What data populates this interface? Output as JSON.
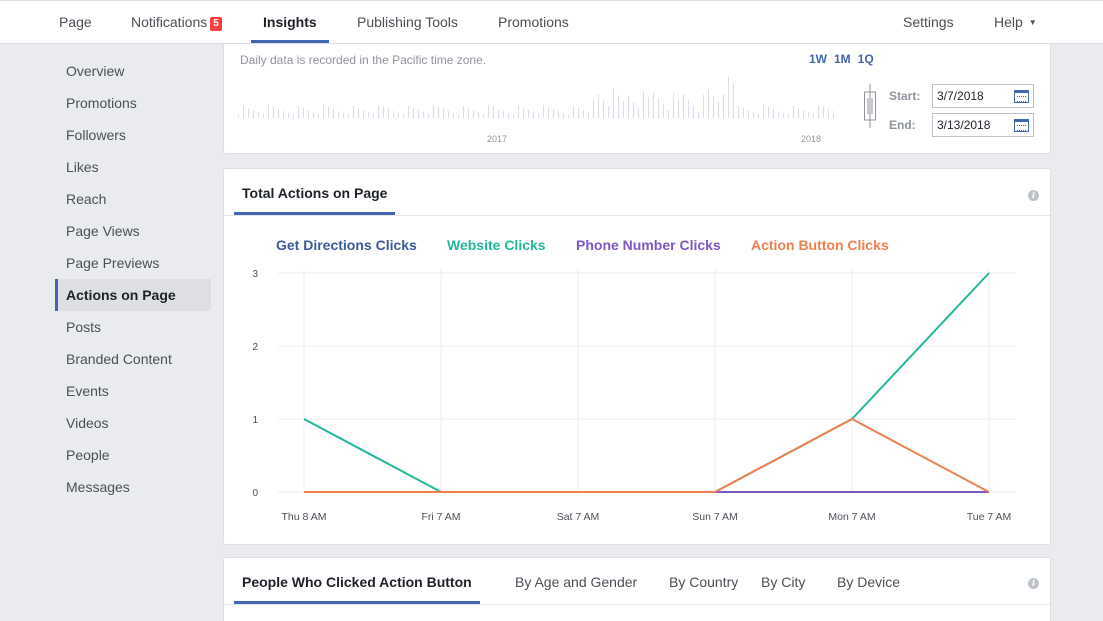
{
  "topnav": {
    "items": [
      {
        "label": "Page"
      },
      {
        "label": "Notifications",
        "badge": "5"
      },
      {
        "label": "Insights"
      },
      {
        "label": "Publishing Tools"
      },
      {
        "label": "Promotions"
      }
    ],
    "settings_label": "Settings",
    "help_label": "Help"
  },
  "sidebar": {
    "items": [
      "Overview",
      "Promotions",
      "Followers",
      "Likes",
      "Reach",
      "Page Views",
      "Page Previews",
      "Actions on Page",
      "Posts",
      "Branded Content",
      "Events",
      "Videos",
      "People",
      "Messages"
    ],
    "active_index": 7
  },
  "timeline": {
    "note": "Daily data is recorded in the Pacific time zone.",
    "range_buttons": [
      "1W",
      "1M",
      "1Q"
    ],
    "year_labels": [
      "2017",
      "2018"
    ],
    "start_label": "Start:",
    "start_value": "3/7/2018",
    "end_label": "End:",
    "end_value": "3/13/2018"
  },
  "actions_card": {
    "tab_label": "Total Actions on Page",
    "info_glyph": "i"
  },
  "bottom_card": {
    "tabs": [
      "People Who Clicked Action Button",
      "By Age and Gender",
      "By Country",
      "By City",
      "By Device"
    ],
    "info_glyph": "i"
  },
  "colors": {
    "accent": "#4267b2",
    "directions": "#3b5998",
    "website": "#20b79a",
    "phone": "#7e57c2",
    "action_button": "#f07f4f"
  },
  "chart_data": {
    "type": "line",
    "categories": [
      "Thu 8 AM",
      "Fri 7 AM",
      "Sat 7 AM",
      "Sun 7 AM",
      "Mon 7 AM",
      "Tue 7 AM"
    ],
    "ylim": [
      0,
      3
    ],
    "yticks": [
      0,
      1,
      2,
      3
    ],
    "grid": true,
    "legend_position": "top",
    "series": [
      {
        "name": "Get Directions Clicks",
        "color": "#3b5998",
        "values": [
          0,
          0,
          0,
          0,
          0,
          0
        ]
      },
      {
        "name": "Website Clicks",
        "color": "#20b79a",
        "values": [
          1,
          0,
          0,
          0,
          1,
          3
        ]
      },
      {
        "name": "Phone Number Clicks",
        "color": "#7e57c2",
        "values": [
          0,
          0,
          0,
          0,
          0,
          0
        ]
      },
      {
        "name": "Action Button Clicks",
        "color": "#f07f4f",
        "values": [
          0,
          0,
          0,
          0,
          1,
          0
        ]
      }
    ]
  }
}
